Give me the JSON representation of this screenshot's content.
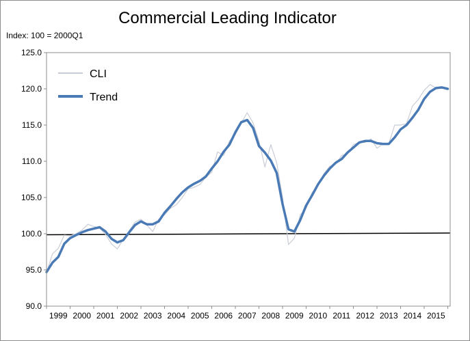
{
  "chart_data": {
    "type": "line",
    "title": "Commercial Leading Indicator",
    "subtitle": "Index: 100 = 2000Q1",
    "xlabel": "",
    "ylabel": "",
    "ylim": [
      90,
      125
    ],
    "yticks": [
      "90.0",
      "95.0",
      "100.0",
      "105.0",
      "110.0",
      "115.0",
      "120.0",
      "125.0"
    ],
    "xlim": [
      1998.0,
      2015.1
    ],
    "xticks": [
      "1999",
      "2000",
      "2001",
      "2002",
      "2003",
      "2004",
      "2005",
      "2006",
      "2007",
      "2008",
      "2009",
      "2010",
      "2011",
      "2012",
      "2013",
      "2014",
      "2015"
    ],
    "grid": false,
    "legend_position": "top-left",
    "reference_line": {
      "y": 100
    },
    "series": [
      {
        "name": "CLI",
        "color": "#c8ccd4",
        "points": [
          [
            1998.0,
            94.6
          ],
          [
            1998.25,
            97.2
          ],
          [
            1998.5,
            98.0
          ],
          [
            1998.75,
            99.8
          ],
          [
            1999.0,
            99.7
          ],
          [
            1999.25,
            100.0
          ],
          [
            1999.5,
            100.5
          ],
          [
            1999.75,
            101.3
          ],
          [
            2000.0,
            101.0
          ],
          [
            2000.25,
            100.8
          ],
          [
            2000.5,
            99.9
          ],
          [
            2000.75,
            98.6
          ],
          [
            2001.0,
            97.9
          ],
          [
            2001.25,
            99.2
          ],
          [
            2001.5,
            100.4
          ],
          [
            2001.75,
            101.6
          ],
          [
            2002.0,
            102.0
          ],
          [
            2002.25,
            101.2
          ],
          [
            2002.5,
            100.3
          ],
          [
            2002.75,
            102.0
          ],
          [
            2003.0,
            102.6
          ],
          [
            2003.25,
            103.5
          ],
          [
            2003.5,
            104.0
          ],
          [
            2003.75,
            105.0
          ],
          [
            2004.0,
            106.2
          ],
          [
            2004.25,
            106.4
          ],
          [
            2004.5,
            106.8
          ],
          [
            2004.75,
            107.8
          ],
          [
            2005.0,
            108.5
          ],
          [
            2005.25,
            111.3
          ],
          [
            2005.5,
            110.8
          ],
          [
            2005.75,
            112.8
          ],
          [
            2006.0,
            113.7
          ],
          [
            2006.25,
            115.3
          ],
          [
            2006.5,
            116.7
          ],
          [
            2006.75,
            115.3
          ],
          [
            2007.0,
            112.8
          ],
          [
            2007.25,
            109.2
          ],
          [
            2007.5,
            112.3
          ],
          [
            2007.75,
            109.8
          ],
          [
            2008.0,
            105.0
          ],
          [
            2008.25,
            98.5
          ],
          [
            2008.5,
            99.4
          ],
          [
            2008.75,
            102.6
          ],
          [
            2009.0,
            103.5
          ],
          [
            2009.25,
            105.7
          ],
          [
            2009.5,
            106.6
          ],
          [
            2009.75,
            108.3
          ],
          [
            2010.0,
            109.3
          ],
          [
            2010.25,
            109.6
          ],
          [
            2010.5,
            110.8
          ],
          [
            2010.75,
            111.0
          ],
          [
            2011.0,
            112.3
          ],
          [
            2011.25,
            112.6
          ],
          [
            2011.5,
            112.6
          ],
          [
            2011.75,
            113.1
          ],
          [
            2012.0,
            111.8
          ],
          [
            2012.25,
            112.4
          ],
          [
            2012.5,
            112.4
          ],
          [
            2012.75,
            115.0
          ],
          [
            2013.0,
            115.0
          ],
          [
            2013.25,
            115.2
          ],
          [
            2013.5,
            117.6
          ],
          [
            2013.75,
            118.5
          ],
          [
            2014.0,
            119.8
          ],
          [
            2014.25,
            120.6
          ],
          [
            2014.5,
            120.1
          ],
          [
            2014.75,
            120.1
          ]
        ]
      },
      {
        "name": "Trend",
        "color": "#4a7ab5",
        "points": [
          [
            1998.0,
            94.7
          ],
          [
            1998.25,
            96.0
          ],
          [
            1998.5,
            96.8
          ],
          [
            1998.75,
            98.6
          ],
          [
            1999.0,
            99.4
          ],
          [
            1999.25,
            99.8
          ],
          [
            1999.5,
            100.2
          ],
          [
            1999.75,
            100.5
          ],
          [
            2000.0,
            100.7
          ],
          [
            2000.25,
            100.9
          ],
          [
            2000.5,
            100.3
          ],
          [
            2000.75,
            99.3
          ],
          [
            2001.0,
            98.8
          ],
          [
            2001.25,
            99.1
          ],
          [
            2001.5,
            100.2
          ],
          [
            2001.75,
            101.2
          ],
          [
            2002.0,
            101.7
          ],
          [
            2002.25,
            101.3
          ],
          [
            2002.5,
            101.3
          ],
          [
            2002.75,
            101.7
          ],
          [
            2003.0,
            102.9
          ],
          [
            2003.25,
            103.8
          ],
          [
            2003.5,
            104.8
          ],
          [
            2003.75,
            105.7
          ],
          [
            2004.0,
            106.4
          ],
          [
            2004.25,
            106.9
          ],
          [
            2004.5,
            107.3
          ],
          [
            2004.75,
            107.9
          ],
          [
            2005.0,
            109.0
          ],
          [
            2005.25,
            110.0
          ],
          [
            2005.5,
            111.3
          ],
          [
            2005.75,
            112.3
          ],
          [
            2006.0,
            114.0
          ],
          [
            2006.25,
            115.4
          ],
          [
            2006.5,
            115.7
          ],
          [
            2006.75,
            114.6
          ],
          [
            2007.0,
            112.1
          ],
          [
            2007.25,
            111.2
          ],
          [
            2007.5,
            110.1
          ],
          [
            2007.75,
            108.4
          ],
          [
            2008.0,
            104.1
          ],
          [
            2008.25,
            100.6
          ],
          [
            2008.5,
            100.3
          ],
          [
            2008.75,
            101.9
          ],
          [
            2009.0,
            103.9
          ],
          [
            2009.25,
            105.3
          ],
          [
            2009.5,
            106.8
          ],
          [
            2009.75,
            108.0
          ],
          [
            2010.0,
            109.0
          ],
          [
            2010.25,
            109.8
          ],
          [
            2010.5,
            110.3
          ],
          [
            2010.75,
            111.2
          ],
          [
            2011.0,
            111.9
          ],
          [
            2011.25,
            112.6
          ],
          [
            2011.5,
            112.8
          ],
          [
            2011.75,
            112.8
          ],
          [
            2012.0,
            112.5
          ],
          [
            2012.25,
            112.4
          ],
          [
            2012.5,
            112.4
          ],
          [
            2012.75,
            113.3
          ],
          [
            2013.0,
            114.4
          ],
          [
            2013.25,
            115.0
          ],
          [
            2013.5,
            116.0
          ],
          [
            2013.75,
            117.1
          ],
          [
            2014.0,
            118.6
          ],
          [
            2014.25,
            119.6
          ],
          [
            2014.5,
            120.1
          ],
          [
            2014.75,
            120.2
          ],
          [
            2015.0,
            120.0
          ]
        ]
      }
    ]
  }
}
